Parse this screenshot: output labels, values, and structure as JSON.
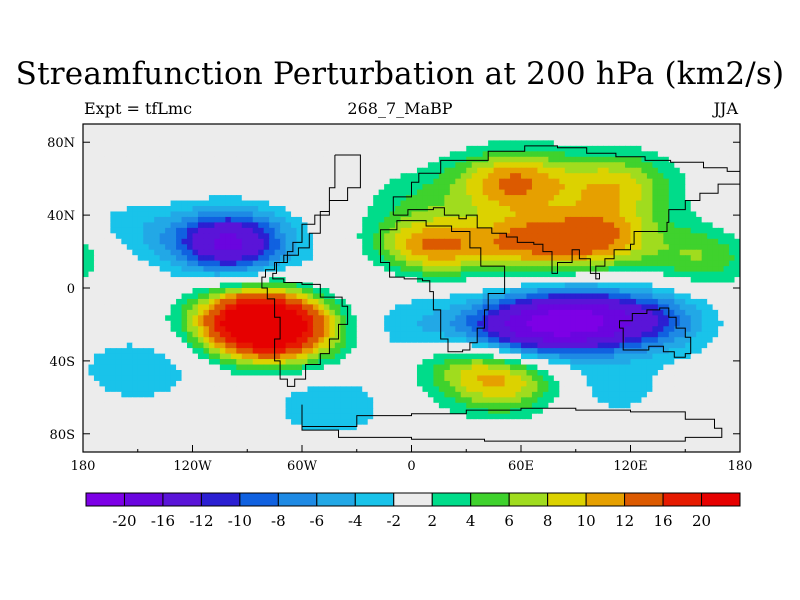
{
  "figure": {
    "title": "Streamfunction Perturbation at 200 hPa (km2/s)",
    "left_string": "Expt = tfLmc",
    "center_string": "268_7_MaBP",
    "right_string": "JJA"
  },
  "colors": {
    "fill_colors": [
      "#7d00e6",
      "#6a05df",
      "#5a14d8",
      "#2b1fd2",
      "#1061e0",
      "#1e8ae4",
      "#22a8e6",
      "#19c3ea",
      "#ececec",
      "#00dc8a",
      "#3fd22d",
      "#a0dc1e",
      "#dcd200",
      "#e6a000",
      "#dc5a00",
      "#e61a00",
      "#e60000"
    ]
  },
  "chart_data": {
    "type": "contour_map",
    "projection": "cylindrical_equidistant",
    "variable": "Streamfunction Perturbation at 200 hPa (km2/s)",
    "xlim": [
      -180,
      180
    ],
    "ylim": [
      -90,
      90
    ],
    "x_ticks": [
      -180,
      -120,
      -60,
      0,
      60,
      120,
      180
    ],
    "x_tick_labels": [
      "180",
      "120W",
      "60W",
      "0",
      "60E",
      "120E",
      "180"
    ],
    "y_ticks": [
      80,
      40,
      0,
      -40,
      -80
    ],
    "y_tick_labels": [
      "80N",
      "40N",
      "0",
      "40S",
      "80S"
    ],
    "contour_levels": [
      -20,
      -16,
      -12,
      -10,
      -8,
      -6,
      -4,
      -2,
      2,
      4,
      6,
      8,
      10,
      12,
      16,
      20
    ],
    "colorbar_labels": [
      "-20",
      "-16",
      "-12",
      "-10",
      "-8",
      "-6",
      "-4",
      "-2",
      "2",
      "4",
      "6",
      "8",
      "10",
      "12",
      "16",
      "20"
    ],
    "features": [
      {
        "lon": -85,
        "lat": -18,
        "value": 24
      },
      {
        "lon": -70,
        "lat": -25,
        "value": 12
      },
      {
        "lon": -100,
        "lat": 25,
        "value": -17
      },
      {
        "lon": -155,
        "lat": 32,
        "value": -3
      },
      {
        "lon": -30,
        "lat": 8,
        "value": -1.5
      },
      {
        "lon": 10,
        "lat": 12,
        "value": -2
      },
      {
        "lon": 90,
        "lat": -18,
        "value": -18
      },
      {
        "lon": 55,
        "lat": -22,
        "value": -13
      },
      {
        "lon": 130,
        "lat": -18,
        "value": -10
      },
      {
        "lon": 5,
        "lat": -23,
        "value": -4
      },
      {
        "lon": 55,
        "lat": 58,
        "value": 12
      },
      {
        "lon": 110,
        "lat": 58,
        "value": 8
      },
      {
        "lon": 5,
        "lat": 50,
        "value": 3
      },
      {
        "lon": 10,
        "lat": 22,
        "value": 13
      },
      {
        "lon": 100,
        "lat": 27,
        "value": 12
      },
      {
        "lon": 60,
        "lat": 25,
        "value": 10
      },
      {
        "lon": 160,
        "lat": 18,
        "value": 6
      },
      {
        "lon": 50,
        "lat": -52,
        "value": 9
      },
      {
        "lon": 30,
        "lat": -40,
        "value": 5
      },
      {
        "lon": -150,
        "lat": -45,
        "value": -4
      },
      {
        "lon": -45,
        "lat": -65,
        "value": -4
      },
      {
        "lon": 110,
        "lat": -55,
        "value": -3
      },
      {
        "lon": 120,
        "lat": 45,
        "value": 2
      }
    ]
  }
}
